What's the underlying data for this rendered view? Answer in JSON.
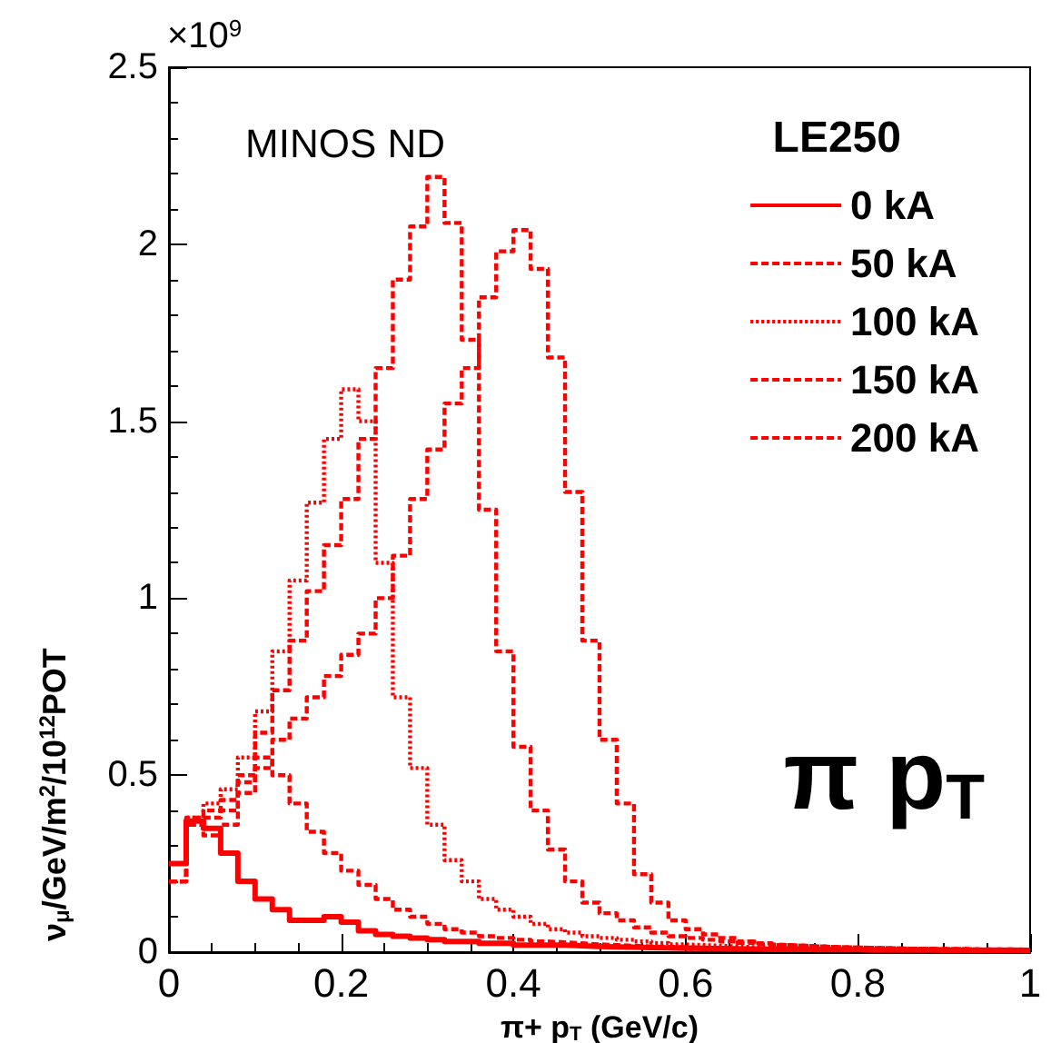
{
  "chart_data": {
    "type": "step",
    "xlabel": "π+ p$_{T}$ (GeV/c)",
    "ylabel": "ν$_{μ}$/GeV/m$^{2}$/10$^{12}$POT",
    "legend_title": "LE250",
    "annotations": [
      "MINOS ND",
      "π p$_{T}$",
      "×10$^{9}$"
    ],
    "x": [
      0,
      0.02,
      0.04,
      0.06,
      0.08,
      0.1,
      0.12,
      0.14,
      0.16,
      0.18,
      0.2,
      0.22,
      0.24,
      0.26,
      0.28,
      0.3,
      0.32,
      0.34,
      0.36,
      0.38,
      0.4,
      0.42,
      0.44,
      0.46,
      0.48,
      0.5,
      0.52,
      0.54,
      0.56,
      0.58,
      0.6,
      0.62,
      0.64,
      0.66,
      0.68,
      0.7,
      0.72,
      0.74,
      0.76,
      0.78,
      0.8,
      0.82,
      0.84,
      0.86,
      0.88,
      0.9,
      0.92,
      0.94,
      0.96,
      0.98,
      1
    ],
    "series": [
      {
        "name": "0 kA",
        "color": "#ff0000",
        "line_style": "solid",
        "values": [
          0.25,
          0.37,
          0.35,
          0.28,
          0.2,
          0.15,
          0.12,
          0.09,
          0.09,
          0.1,
          0.085,
          0.06,
          0.05,
          0.045,
          0.04,
          0.035,
          0.03,
          0.03,
          0.025,
          0.025,
          0.02,
          0.02,
          0.02,
          0.018,
          0.016,
          0.015,
          0.014,
          0.013,
          0.012,
          0.011,
          0.01,
          0.01,
          0.009,
          0.009,
          0.008,
          0.008,
          0.008,
          0.007,
          0.007,
          0.007,
          0.006,
          0.006,
          0.006,
          0.006,
          0.005,
          0.005,
          0.005,
          0.005,
          0.005,
          0.005,
          0.005
        ]
      },
      {
        "name": "50 kA",
        "color": "#ff0000",
        "line_style": "dashed",
        "values": [
          0.2,
          0.38,
          0.4,
          0.43,
          0.48,
          0.55,
          0.5,
          0.42,
          0.34,
          0.28,
          0.23,
          0.19,
          0.15,
          0.12,
          0.1,
          0.08,
          0.065,
          0.055,
          0.045,
          0.04,
          0.035,
          0.03,
          0.028,
          0.025,
          0.022,
          0.02,
          0.018,
          0.016,
          0.015,
          0.014,
          0.013,
          0.012,
          0.011,
          0.01,
          0.01,
          0.009,
          0.009,
          0.008,
          0.008,
          0.008,
          0.007,
          0.007,
          0.007,
          0.006,
          0.006,
          0.006,
          0.006,
          0.005,
          0.005,
          0.005,
          0.005
        ]
      },
      {
        "name": "100 kA",
        "color": "#ff0000",
        "line_style": "dotted",
        "values": [
          0.2,
          0.38,
          0.42,
          0.46,
          0.55,
          0.68,
          0.85,
          1.05,
          1.27,
          1.45,
          1.59,
          1.5,
          1.1,
          0.72,
          0.52,
          0.36,
          0.26,
          0.2,
          0.15,
          0.12,
          0.1,
          0.08,
          0.065,
          0.055,
          0.045,
          0.04,
          0.035,
          0.03,
          0.026,
          0.022,
          0.02,
          0.018,
          0.016,
          0.014,
          0.013,
          0.012,
          0.011,
          0.01,
          0.01,
          0.009,
          0.009,
          0.008,
          0.008,
          0.007,
          0.007,
          0.007,
          0.006,
          0.006,
          0.006,
          0.006,
          0.006
        ]
      },
      {
        "name": "150 kA",
        "color": "#ff0000",
        "line_style": "dashed",
        "values": [
          0.2,
          0.36,
          0.38,
          0.4,
          0.5,
          0.62,
          0.74,
          0.88,
          1.02,
          1.15,
          1.28,
          1.45,
          1.65,
          1.9,
          2.05,
          2.19,
          2.06,
          1.73,
          1.25,
          0.85,
          0.58,
          0.4,
          0.29,
          0.2,
          0.14,
          0.11,
          0.09,
          0.07,
          0.055,
          0.045,
          0.04,
          0.035,
          0.03,
          0.026,
          0.022,
          0.02,
          0.018,
          0.016,
          0.014,
          0.013,
          0.012,
          0.011,
          0.01,
          0.01,
          0.009,
          0.009,
          0.008,
          0.008,
          0.008,
          0.007,
          0.007
        ]
      },
      {
        "name": "200 kA",
        "color": "#ff0000",
        "line_style": "dashed",
        "values": [
          0.2,
          0.36,
          0.33,
          0.36,
          0.45,
          0.52,
          0.6,
          0.66,
          0.72,
          0.78,
          0.84,
          0.9,
          1.0,
          1.12,
          1.28,
          1.42,
          1.55,
          1.65,
          1.85,
          1.98,
          2.04,
          1.93,
          1.68,
          1.3,
          0.88,
          0.6,
          0.42,
          0.22,
          0.14,
          0.09,
          0.065,
          0.05,
          0.04,
          0.03,
          0.025,
          0.02,
          0.018,
          0.016,
          0.014,
          0.013,
          0.012,
          0.011,
          0.01,
          0.01,
          0.009,
          0.009,
          0.008,
          0.008,
          0.008,
          0.007,
          0.007
        ]
      }
    ],
    "xlim": [
      0,
      1
    ],
    "xticks": [
      0,
      0.2,
      0.4,
      0.6,
      0.8,
      1
    ],
    "ylim": [
      0,
      2.5
    ],
    "yticks": [
      0,
      0.5,
      1,
      1.5,
      2,
      2.5
    ],
    "legend": "top right",
    "marker": "none",
    "grid": false
  }
}
